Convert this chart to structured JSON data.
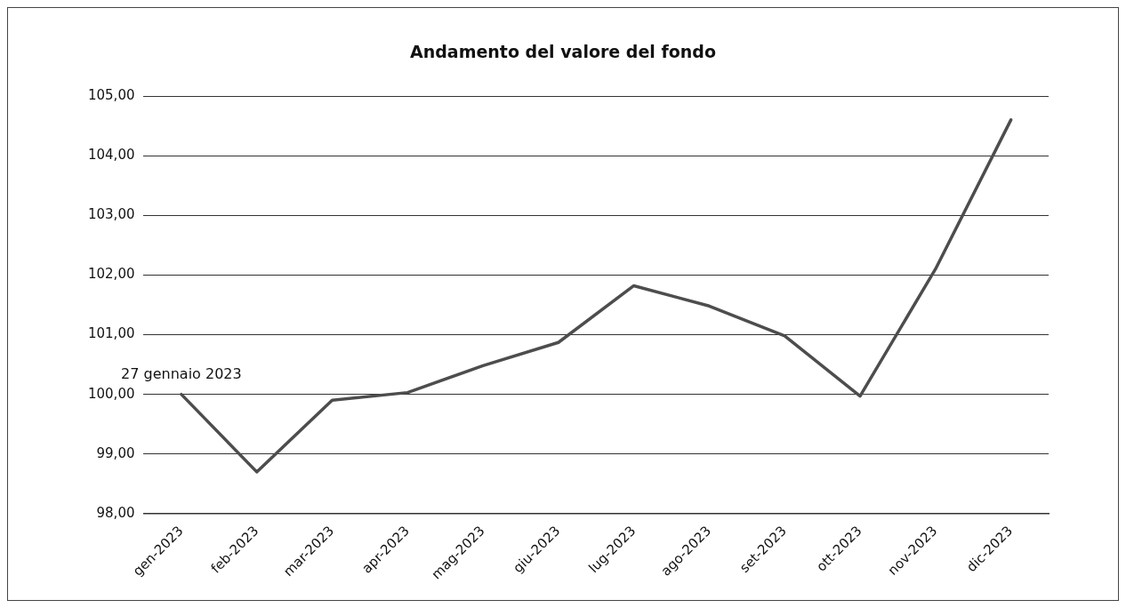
{
  "chart_data": {
    "type": "line",
    "title": "Andamento del valore del fondo",
    "categories": [
      "gen-2023",
      "feb-2023",
      "mar-2023",
      "apr-2023",
      "mag-2023",
      "giu-2023",
      "lug-2023",
      "ago-2023",
      "set-2023",
      "ott-2023",
      "nov-2023",
      "dic-2023"
    ],
    "series": [
      {
        "color": "#4d4d4d",
        "values": [
          100.0,
          98.7,
          99.9,
          100.03,
          100.48,
          100.87,
          101.82,
          101.48,
          100.98,
          99.97,
          102.1,
          104.6
        ]
      }
    ],
    "ylim": [
      98,
      105
    ],
    "yticks": [
      {
        "value": 98,
        "label": "98,00"
      },
      {
        "value": 99,
        "label": "99,00"
      },
      {
        "value": 100,
        "label": "100,00"
      },
      {
        "value": 101,
        "label": "101,00"
      },
      {
        "value": 102,
        "label": "102,00"
      },
      {
        "value": 103,
        "label": "103,00"
      },
      {
        "value": 104,
        "label": "104,00"
      },
      {
        "value": 105,
        "label": "105,00"
      }
    ],
    "grid": "y",
    "marker": "none",
    "line_style": "solid",
    "legend": false,
    "annotations": [
      {
        "text": "27 gennaio 2023",
        "x": "gen-2023",
        "y": 100
      }
    ]
  }
}
